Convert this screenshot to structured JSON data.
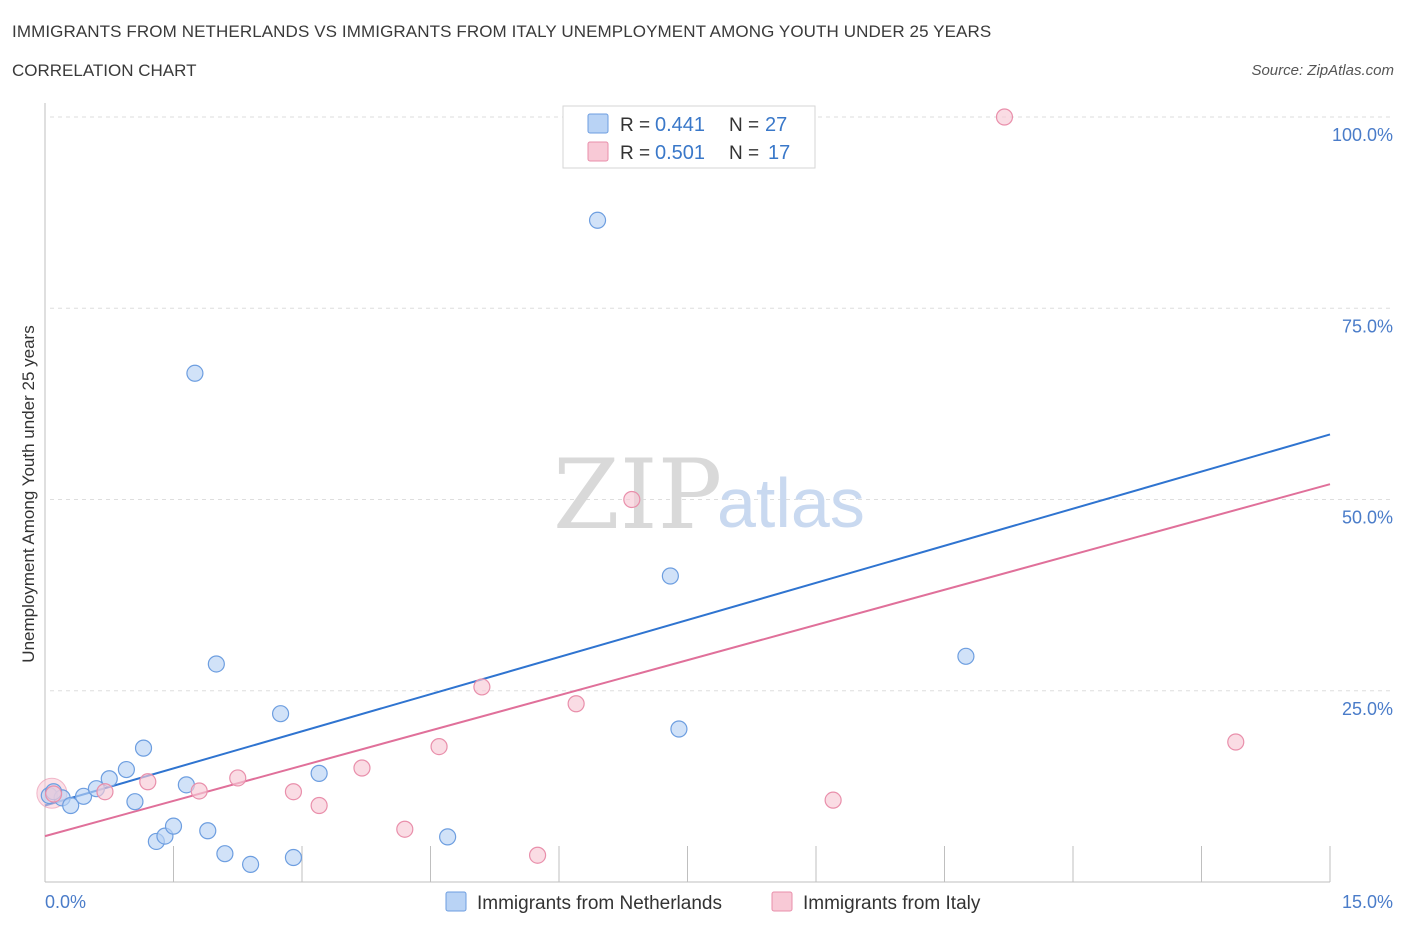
{
  "header": {
    "title": "IMMIGRANTS FROM NETHERLANDS VS IMMIGRANTS FROM ITALY UNEMPLOYMENT AMONG YOUTH UNDER 25 YEARS",
    "subtitle": "CORRELATION CHART",
    "source": "Source: ZipAtlas.com"
  },
  "watermark": {
    "zip": "ZIP",
    "atlas": "atlas"
  },
  "legend": {
    "r_label": "R = ",
    "n_label": "N = ",
    "netherlands": {
      "r": "0.441",
      "n": "27"
    },
    "italy": {
      "r": "0.501",
      "n": "17"
    }
  },
  "colors": {
    "netherlands_fill": "#b9d3f5",
    "netherlands_stroke": "#6d9ee0",
    "netherlands_line": "#2f74d0",
    "italy_fill": "#f8c9d6",
    "italy_stroke": "#e98fab",
    "italy_line": "#e0709a",
    "tick_text": "#4a7cc9"
  },
  "chart_data": {
    "type": "scatter",
    "title": "IMMIGRANTS FROM NETHERLANDS VS IMMIGRANTS FROM ITALY UNEMPLOYMENT AMONG YOUTH UNDER 25 YEARS",
    "subtitle": "CORRELATION CHART",
    "xlabel": "",
    "ylabel": "Unemployment Among Youth under 25 years",
    "xlim": [
      0,
      15
    ],
    "ylim": [
      0,
      100
    ],
    "x_tick_labels": [
      "0.0%",
      "15.0%"
    ],
    "y_ticks": [
      {
        "value": 25,
        "label": "25.0%"
      },
      {
        "value": 50,
        "label": "50.0%"
      },
      {
        "value": 75,
        "label": "75.0%"
      },
      {
        "value": 100,
        "label": "100.0%"
      }
    ],
    "grid": true,
    "legend_position": "top-center",
    "series": [
      {
        "name": "Immigrants from Netherlands",
        "points": [
          [
            0.05,
            11.3
          ],
          [
            0.2,
            11.0
          ],
          [
            0.3,
            10.0
          ],
          [
            0.45,
            11.2
          ],
          [
            0.6,
            12.2
          ],
          [
            0.75,
            13.5
          ],
          [
            0.95,
            14.7
          ],
          [
            1.05,
            10.5
          ],
          [
            1.15,
            17.5
          ],
          [
            1.3,
            5.3
          ],
          [
            1.4,
            6.0
          ],
          [
            1.5,
            7.3
          ],
          [
            1.65,
            12.7
          ],
          [
            1.75,
            66.5
          ],
          [
            1.9,
            6.7
          ],
          [
            2.0,
            28.5
          ],
          [
            2.1,
            3.7
          ],
          [
            2.4,
            2.3
          ],
          [
            2.75,
            22.0
          ],
          [
            2.9,
            3.2
          ],
          [
            3.2,
            14.2
          ],
          [
            4.7,
            5.9
          ],
          [
            6.45,
            86.5
          ],
          [
            7.3,
            40.0
          ],
          [
            7.4,
            20.0
          ],
          [
            10.75,
            29.5
          ],
          [
            0.1,
            11.8
          ]
        ],
        "trend": {
          "x": [
            0,
            15
          ],
          "y": [
            10.0,
            58.5
          ]
        }
      },
      {
        "name": "Immigrants from Italy",
        "points": [
          [
            0.1,
            11.5
          ],
          [
            0.7,
            11.8
          ],
          [
            1.2,
            13.1
          ],
          [
            1.8,
            11.9
          ],
          [
            2.25,
            13.6
          ],
          [
            2.9,
            11.8
          ],
          [
            3.2,
            10.0
          ],
          [
            3.7,
            14.9
          ],
          [
            4.2,
            6.9
          ],
          [
            4.6,
            17.7
          ],
          [
            5.1,
            25.5
          ],
          [
            5.75,
            3.5
          ],
          [
            6.2,
            23.3
          ],
          [
            6.85,
            50.0
          ],
          [
            9.2,
            10.7
          ],
          [
            11.2,
            100.0
          ],
          [
            13.9,
            18.3
          ]
        ],
        "trend": {
          "x": [
            0,
            15
          ],
          "y": [
            6.0,
            52.0
          ]
        }
      }
    ]
  },
  "bottom_legend": {
    "netherlands": "Immigrants from Netherlands",
    "italy": "Immigrants from Italy"
  }
}
